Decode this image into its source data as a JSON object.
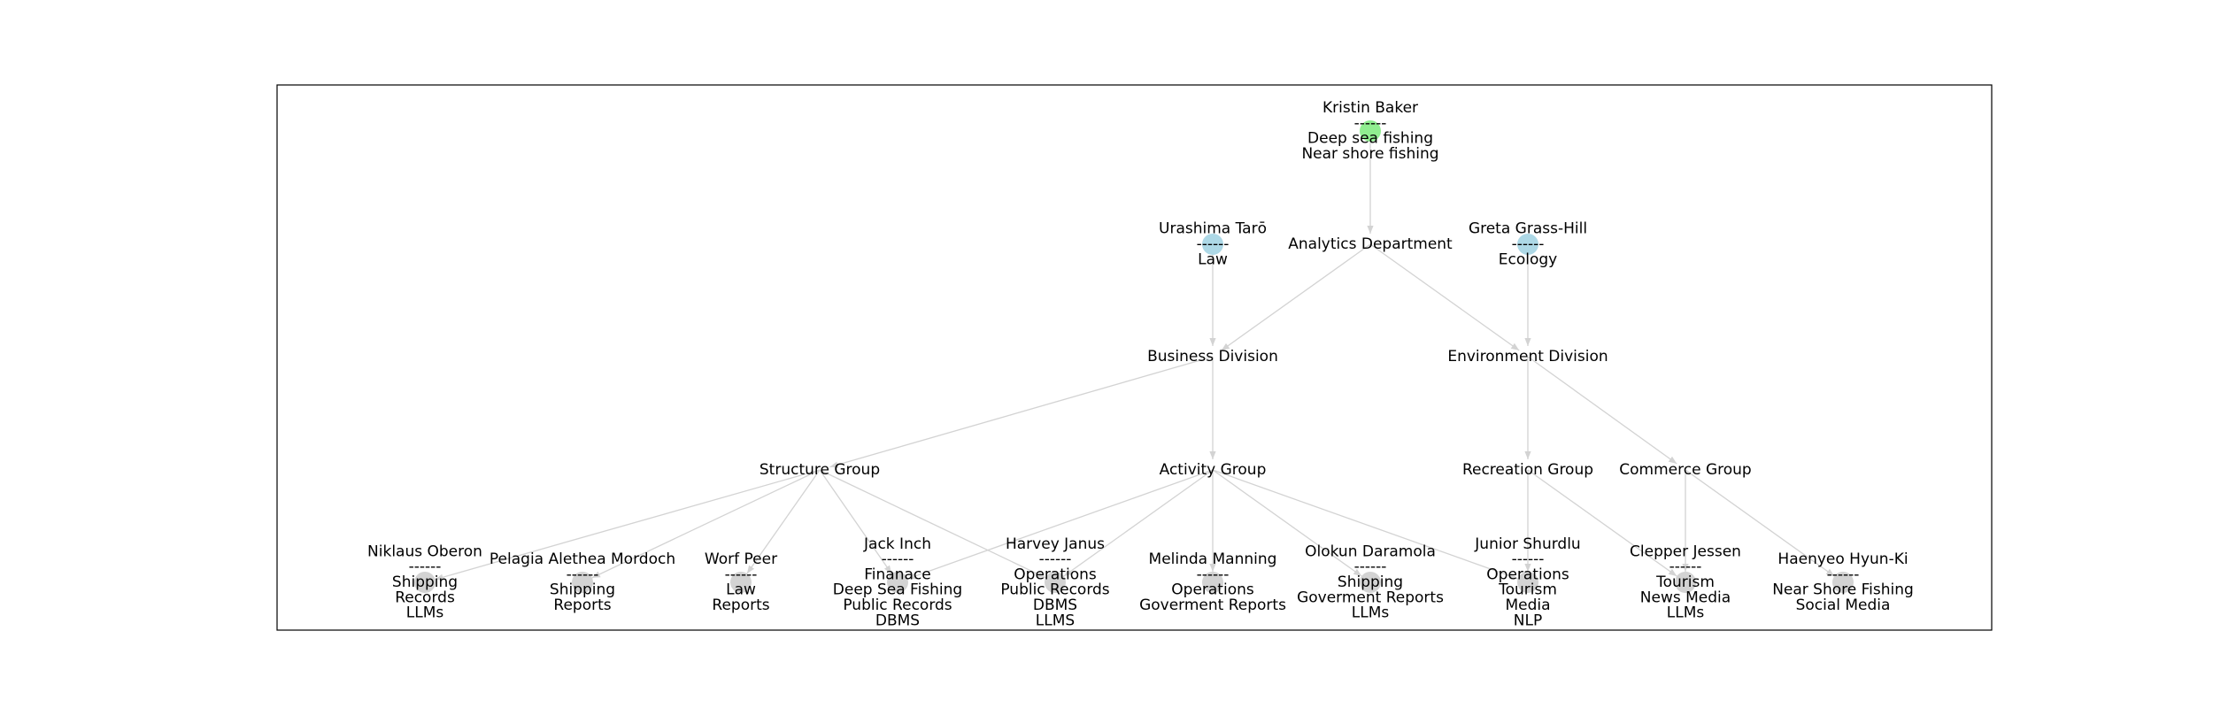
{
  "colors": {
    "root_node": "#90ee90",
    "advisor_node": "#add8e6",
    "member_node": "#d3d3d3",
    "edge": "#d3d3d3",
    "text": "#000000"
  },
  "nodes": [
    {
      "id": "kristin",
      "kind": "root",
      "marker": true,
      "lines": [
        "Kristin Baker",
        "------",
        "Deep sea fishing",
        "Near shore fishing"
      ]
    },
    {
      "id": "urashima",
      "kind": "advisor",
      "marker": true,
      "lines": [
        "Urashima Tarō",
        "------",
        "Law"
      ]
    },
    {
      "id": "analytics",
      "kind": "unit",
      "marker": false,
      "lines": [
        "Analytics Department"
      ]
    },
    {
      "id": "greta",
      "kind": "advisor",
      "marker": true,
      "lines": [
        "Greta Grass-Hill",
        "------",
        "Ecology"
      ]
    },
    {
      "id": "business",
      "kind": "unit",
      "marker": false,
      "lines": [
        "Business Division"
      ]
    },
    {
      "id": "environment",
      "kind": "unit",
      "marker": false,
      "lines": [
        "Environment Division"
      ]
    },
    {
      "id": "structure",
      "kind": "unit",
      "marker": false,
      "lines": [
        "Structure Group"
      ]
    },
    {
      "id": "activity",
      "kind": "unit",
      "marker": false,
      "lines": [
        "Activity Group"
      ]
    },
    {
      "id": "recreation",
      "kind": "unit",
      "marker": false,
      "lines": [
        "Recreation Group"
      ]
    },
    {
      "id": "commerce",
      "kind": "unit",
      "marker": false,
      "lines": [
        "Commerce Group"
      ]
    },
    {
      "id": "niklaus",
      "kind": "member",
      "marker": true,
      "lines": [
        "Niklaus Oberon",
        "------",
        "Shipping",
        "Records",
        "LLMs"
      ]
    },
    {
      "id": "pelagia",
      "kind": "member",
      "marker": true,
      "lines": [
        "Pelagia Alethea Mordoch",
        "------",
        "Shipping",
        "Reports"
      ]
    },
    {
      "id": "worf",
      "kind": "member",
      "marker": true,
      "lines": [
        "Worf Peer",
        "------",
        "Law",
        "Reports"
      ]
    },
    {
      "id": "jack",
      "kind": "member",
      "marker": true,
      "lines": [
        "Jack Inch",
        "------",
        "Finanace",
        "Deep Sea Fishing",
        "Public Records",
        "DBMS"
      ]
    },
    {
      "id": "harvey",
      "kind": "member",
      "marker": true,
      "lines": [
        "Harvey Janus",
        "------",
        "Operations",
        "Public Records",
        "DBMS",
        "LLMS"
      ]
    },
    {
      "id": "melinda",
      "kind": "member",
      "marker": true,
      "lines": [
        "Melinda Manning",
        "------",
        "Operations",
        "Goverment Reports"
      ]
    },
    {
      "id": "olokun",
      "kind": "member",
      "marker": true,
      "lines": [
        "Olokun Daramola",
        "------",
        "Shipping",
        "Goverment Reports",
        "LLMs"
      ]
    },
    {
      "id": "junior",
      "kind": "member",
      "marker": true,
      "lines": [
        "Junior Shurdlu",
        "------",
        "Operations",
        "Tourism",
        "Media",
        "NLP"
      ]
    },
    {
      "id": "clepper",
      "kind": "member",
      "marker": true,
      "lines": [
        "Clepper Jessen",
        "------",
        "Tourism",
        "News Media",
        "LLMs"
      ]
    },
    {
      "id": "haenyeo",
      "kind": "member",
      "marker": true,
      "lines": [
        "Haenyeo Hyun-Ki",
        "------",
        "Near Shore Fishing",
        "Social Media"
      ]
    }
  ],
  "edges": [
    [
      "kristin",
      "analytics"
    ],
    [
      "urashima",
      "business"
    ],
    [
      "greta",
      "environment"
    ],
    [
      "analytics",
      "business"
    ],
    [
      "analytics",
      "environment"
    ],
    [
      "business",
      "structure"
    ],
    [
      "business",
      "activity"
    ],
    [
      "environment",
      "recreation"
    ],
    [
      "environment",
      "commerce"
    ],
    [
      "structure",
      "niklaus"
    ],
    [
      "structure",
      "pelagia"
    ],
    [
      "structure",
      "worf"
    ],
    [
      "structure",
      "jack"
    ],
    [
      "structure",
      "harvey"
    ],
    [
      "activity",
      "jack"
    ],
    [
      "activity",
      "harvey"
    ],
    [
      "activity",
      "melinda"
    ],
    [
      "activity",
      "olokun"
    ],
    [
      "activity",
      "junior"
    ],
    [
      "recreation",
      "junior"
    ],
    [
      "recreation",
      "clepper"
    ],
    [
      "commerce",
      "clepper"
    ],
    [
      "commerce",
      "haenyeo"
    ]
  ]
}
